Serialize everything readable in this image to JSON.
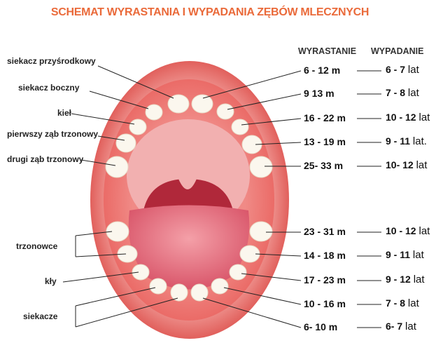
{
  "title": "SCHEMAT WYRASTANIA I WYPADANIA ZĘBÓW MLECZNYCH",
  "headers": {
    "erupt": "WYRASTANIE",
    "fall": "WYPADANIE"
  },
  "left_labels": [
    "siekacz przyśrodkowy",
    "siekacz boczny",
    "kieł",
    "pierwszy ząb trzonowy",
    "drugi ząb trzonowy",
    "trzonowce",
    "kły",
    "siekacze"
  ],
  "rows": [
    {
      "erupt": "6 - 12 m",
      "fall": "6 - 7",
      "unit": "lat"
    },
    {
      "erupt": "9   13 m",
      "fall": "7 - 8",
      "unit": "lat"
    },
    {
      "erupt": "16 - 22 m",
      "fall": "10 - 12",
      "unit": "lat"
    },
    {
      "erupt": "13 - 19 m",
      "fall": "9 - 11",
      "unit": "lat."
    },
    {
      "erupt": "25- 33 m",
      "fall": "10- 12",
      "unit": "lat"
    },
    {
      "erupt": "23 - 31 m",
      "fall": "10 - 12",
      "unit": "lat"
    },
    {
      "erupt": "14 - 18 m",
      "fall": "9 - 11",
      "unit": "lat"
    },
    {
      "erupt": "17 - 23 m",
      "fall": "9 - 12",
      "unit": "lat"
    },
    {
      "erupt": "10 - 16 m",
      "fall": "7 - 8",
      "unit": "lat"
    },
    {
      "erupt": "6- 10 m",
      "fall": "6- 7",
      "unit": "lat"
    }
  ],
  "colors": {
    "title": "#ea6a3a",
    "lips": "#e0504a",
    "mouth": "#c0303a",
    "tongue": "#e8707a",
    "tooth": "#fbf7ee"
  }
}
